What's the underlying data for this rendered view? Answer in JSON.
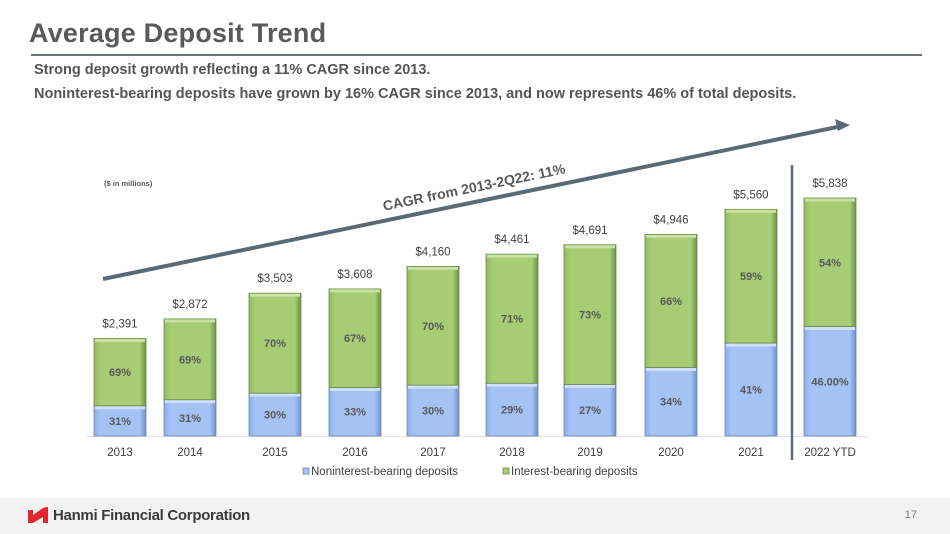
{
  "header": {
    "title": "Average Deposit Trend",
    "subtitle_1": "Strong deposit growth reflecting a 11% CAGR since 2013.",
    "subtitle_2": "Noninterest-bearing deposits have grown by 16% CAGR since 2013, and now represents 46%  of total deposits."
  },
  "chart_data": {
    "type": "bar",
    "stacked": true,
    "units_note": "($ in millions)",
    "categories": [
      "2013",
      "2014",
      "2015",
      "2016",
      "2017",
      "2018",
      "2019",
      "2020",
      "2021",
      "2022 YTD"
    ],
    "totals": [
      2391,
      2872,
      3503,
      3608,
      4160,
      4461,
      4691,
      4946,
      5560,
      5838
    ],
    "total_labels": [
      "$2,391",
      "$2,872",
      "$3,503",
      "$3,608",
      "$4,160",
      "$4,461",
      "$4,691",
      "$4,946",
      "$5,560",
      "$5,838"
    ],
    "series": [
      {
        "name": "Noninterest-bearing deposits",
        "color": "#a4c2f4",
        "share_pct": [
          31,
          31,
          30,
          33,
          30,
          29,
          27,
          34,
          41,
          46
        ],
        "labels": [
          "31%",
          "31%",
          "30%",
          "33%",
          "30%",
          "29%",
          "27%",
          "34%",
          "41%",
          "46.00%"
        ]
      },
      {
        "name": "Interest-bearing deposits",
        "color": "#a6cc74",
        "share_pct": [
          69,
          69,
          70,
          67,
          70,
          71,
          73,
          66,
          59,
          54
        ],
        "labels": [
          "69%",
          "69%",
          "70%",
          "67%",
          "70%",
          "71%",
          "73%",
          "66%",
          "59%",
          "54%"
        ]
      }
    ],
    "annotation": "CAGR from 2013-2Q22: 11%",
    "legend_position": "bottom",
    "grid": false,
    "ylim": [
      0,
      5838
    ]
  },
  "footer": {
    "company": "Hanmi Financial Corporation",
    "page_number": "17"
  },
  "colors": {
    "accent_red": "#e0282e",
    "arrow": "#5a6a75"
  }
}
